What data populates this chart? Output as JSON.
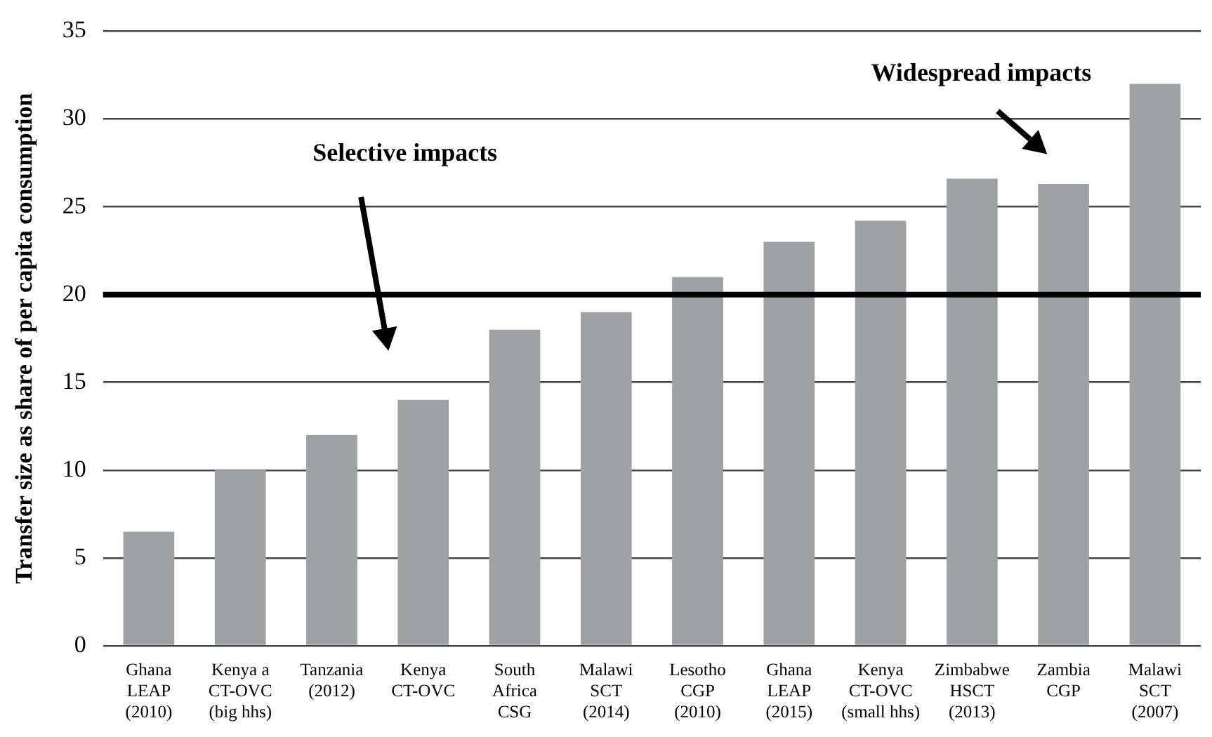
{
  "chart_data": {
    "type": "bar",
    "ylabel": "Transfer size as share of per capita consumption",
    "categories": [
      "Ghana\nLEAP\n(2010)",
      "Kenya a\nCT-OVC\n(big hhs)",
      "Tanzania\n(2012)",
      "Kenya\nCT-OVC",
      "South\nAfrica\nCSG",
      "Malawi\nSCT\n(2014)",
      "Lesotho\nCGP\n(2010)",
      "Ghana\nLEAP\n(2015)",
      "Kenya\nCT-OVC\n(small hhs)",
      "Zimbabwe\nHSCT\n(2013)",
      "Zambia\nCGP",
      "Malawi\nSCT\n(2007)"
    ],
    "values": [
      6.5,
      10,
      12,
      14,
      18,
      19,
      21,
      23,
      24.2,
      26.6,
      26.3,
      32
    ],
    "color": "#a0a1a5",
    "ylim": [
      0,
      35
    ],
    "yticks": [
      0,
      5,
      10,
      15,
      20,
      25,
      30,
      35
    ],
    "grid": "y",
    "legend": false,
    "ref_lines": [
      {
        "axis": "y",
        "value": 20,
        "color": "#000000"
      }
    ],
    "annotations": [
      "Selective impacts",
      "Widespread impacts"
    ]
  }
}
